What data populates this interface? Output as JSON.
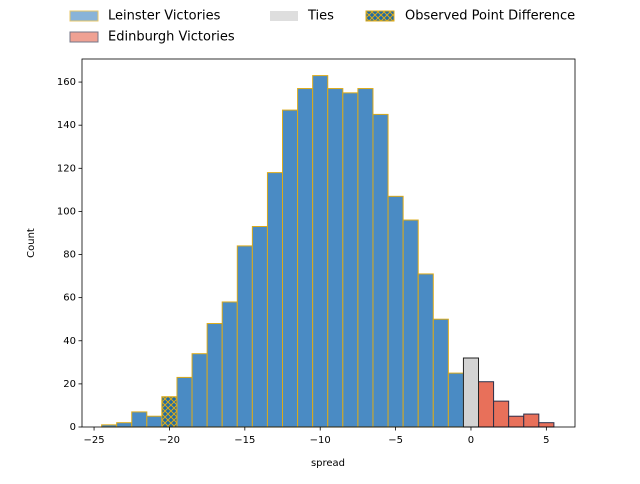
{
  "chart_data": {
    "type": "histogram",
    "xlabel": "spread",
    "ylabel": "Count",
    "xlim": [
      -25.8,
      6.9
    ],
    "ylim": [
      0,
      170.7
    ],
    "xticks": [
      {
        "value": -25,
        "label": "−25"
      },
      {
        "value": -20,
        "label": "−20"
      },
      {
        "value": -15,
        "label": "−15"
      },
      {
        "value": -10,
        "label": "−10"
      },
      {
        "value": -5,
        "label": "−5"
      },
      0,
      5
    ],
    "yticks": [
      0,
      20,
      40,
      60,
      80,
      100,
      120,
      140,
      160
    ],
    "legend": "top",
    "series": [
      {
        "name": "Leinster Victories",
        "color": "#4a8bc4",
        "edgecolor": "#dbaa1a",
        "bins": [
          -24.5,
          -23.5,
          -22.5,
          -21.5,
          -20.5,
          -19.5,
          -18.5,
          -17.5,
          -16.5,
          -15.5,
          -14.5,
          -13.5,
          -12.5,
          -11.5,
          -10.5,
          -9.5,
          -8.5,
          -7.5,
          -6.5,
          -5.5,
          -4.5,
          -3.5,
          -2.5,
          -1.5,
          -0.5
        ],
        "values": [
          1,
          2,
          7,
          5,
          14,
          23,
          34,
          48,
          58,
          84,
          93,
          118,
          147,
          157,
          163,
          157,
          155,
          157,
          145,
          107,
          96,
          71,
          50,
          25
        ]
      },
      {
        "name": "Edinburgh Victories",
        "color": "#e8705a",
        "edgecolor": "#2b2f4a",
        "bins": [
          0.5,
          1.5,
          2.5,
          3.5,
          4.5,
          5.5
        ],
        "values": [
          21,
          12,
          5,
          6,
          2
        ]
      },
      {
        "name": "Ties",
        "color": "#d3d3d3",
        "edgecolor": "#222222",
        "bins": [
          -0.5,
          0.5
        ],
        "values": [
          32
        ]
      }
    ],
    "observed": {
      "name": "Observed Point Difference",
      "x": -20,
      "color": "#1f6aa5",
      "hatch": "#dbaa1a"
    }
  }
}
